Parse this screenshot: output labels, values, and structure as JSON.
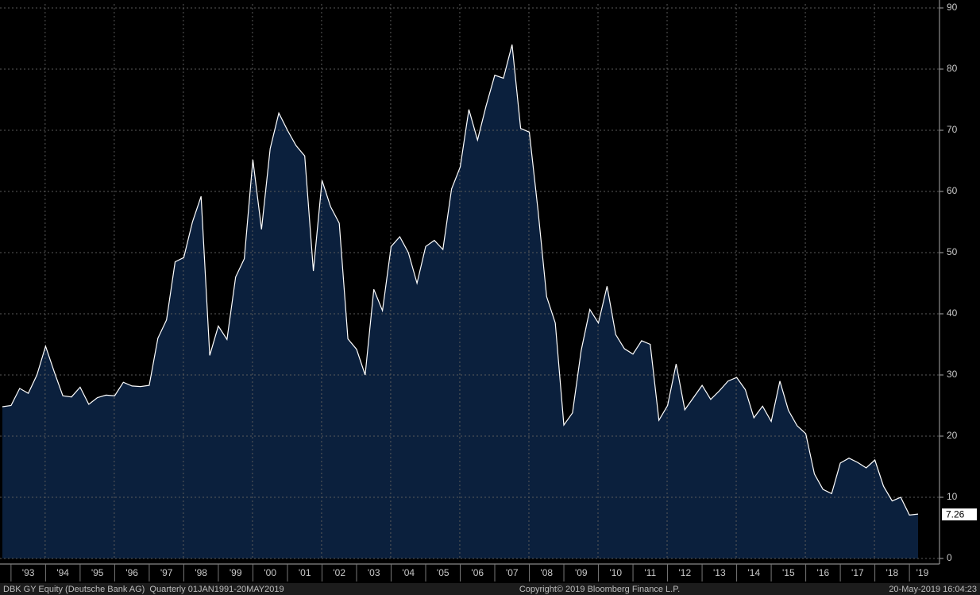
{
  "chart_data": {
    "type": "area",
    "categories": [
      null,
      null,
      null,
      "'93",
      null,
      null,
      null,
      "'94",
      null,
      null,
      null,
      "'95",
      null,
      null,
      null,
      "'96",
      null,
      null,
      null,
      "'97",
      null,
      null,
      null,
      "'98",
      null,
      null,
      null,
      "'99",
      null,
      null,
      null,
      "'00",
      null,
      null,
      null,
      "'01",
      null,
      null,
      null,
      "'02",
      null,
      null,
      null,
      "'03",
      null,
      null,
      null,
      "'04",
      null,
      null,
      null,
      "'05",
      null,
      null,
      null,
      "'06",
      null,
      null,
      null,
      "'07",
      null,
      null,
      null,
      "'08",
      null,
      null,
      null,
      "'09",
      null,
      null,
      null,
      "'10",
      null,
      null,
      null,
      "'11",
      null,
      null,
      null,
      "'12",
      null,
      null,
      null,
      "'13",
      null,
      null,
      null,
      "'14",
      null,
      null,
      null,
      "'15",
      null,
      null,
      null,
      "'16",
      null,
      null,
      null,
      "'17",
      null,
      null,
      null,
      "'18",
      null,
      null,
      "'19"
    ],
    "values": [
      24.8,
      25,
      27.8,
      27,
      30,
      34.7,
      30.5,
      26.6,
      26.4,
      28,
      25.2,
      26.3,
      26.7,
      26.6,
      28.8,
      28.2,
      28.1,
      28.3,
      36,
      39,
      48.5,
      49.2,
      55,
      59.2,
      33.2,
      38,
      35.8,
      46,
      49,
      65.2,
      53.8,
      67,
      72.8,
      70,
      67.5,
      65.8,
      47,
      61.8,
      57.5,
      54.8,
      35.9,
      34.2,
      30,
      44,
      40.5,
      51,
      52.6,
      50,
      45,
      51,
      52,
      50.5,
      60.4,
      64,
      73.4,
      68.4,
      74,
      79,
      78.5,
      84,
      70.3,
      69.7,
      57,
      42.8,
      38.5,
      21.8,
      23.8,
      34,
      40.7,
      38.5,
      44.5,
      36.6,
      34.3,
      33.4,
      35.6,
      35,
      22.6,
      25,
      31.8,
      24.3,
      26.3,
      28.3,
      26,
      27.4,
      29,
      29.6,
      27.6,
      23,
      24.9,
      22.4,
      29,
      24.2,
      21.7,
      20.4,
      13.8,
      11.3,
      10.6,
      15.6,
      16.4,
      15.7,
      14.8,
      16.1,
      11.8,
      9.4,
      10,
      7.1,
      7.26
    ],
    "color": "#0b203d",
    "line_color": "#ffffff",
    "ylim": [
      0,
      90
    ],
    "yticks": [
      0,
      10,
      20,
      30,
      40,
      50,
      60,
      70,
      80,
      90
    ],
    "grid": true
  },
  "footer": {
    "left": "DBK GY Equity (Deutsche Bank AG)  Quarterly 01JAN1991-20MAY2019",
    "center": "Copyright© 2019 Bloomberg Finance L.P.",
    "right": "20-May-2019 16:04:23"
  }
}
